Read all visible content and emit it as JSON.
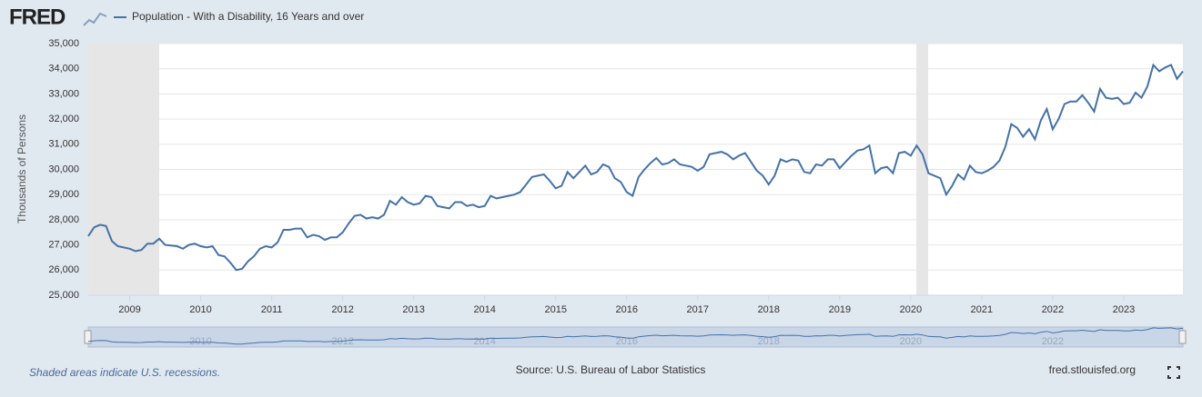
{
  "logo": "FRED",
  "chart_data": {
    "type": "line",
    "y_label": "Thousands of Persons",
    "note": "Shaded areas indicate U.S. recessions.",
    "source": "Source: U.S. Bureau of Labor Statistics",
    "site": "fred.stlouisfed.org",
    "grid": true,
    "ylim": [
      25000,
      35000
    ],
    "yticks": [
      {
        "value": 25000,
        "label": "25,000"
      },
      {
        "value": 26000,
        "label": "26,000"
      },
      {
        "value": 27000,
        "label": "27,000"
      },
      {
        "value": 28000,
        "label": "28,000"
      },
      {
        "value": 29000,
        "label": "29,000"
      },
      {
        "value": 30000,
        "label": "30,000"
      },
      {
        "value": 31000,
        "label": "31,000"
      },
      {
        "value": 32000,
        "label": "32,000"
      },
      {
        "value": 33000,
        "label": "33,000"
      },
      {
        "value": 34000,
        "label": "34,000"
      },
      {
        "value": 35000,
        "label": "35,000"
      }
    ],
    "categories": [
      null,
      null,
      null,
      null,
      null,
      null,
      null,
      "2009",
      null,
      null,
      null,
      null,
      null,
      null,
      null,
      null,
      null,
      null,
      null,
      "2010",
      null,
      null,
      null,
      null,
      null,
      null,
      null,
      null,
      null,
      null,
      null,
      "2011",
      null,
      null,
      null,
      null,
      null,
      null,
      null,
      null,
      null,
      null,
      null,
      "2012",
      null,
      null,
      null,
      null,
      null,
      null,
      null,
      null,
      null,
      null,
      null,
      "2013",
      null,
      null,
      null,
      null,
      null,
      null,
      null,
      null,
      null,
      null,
      null,
      "2014",
      null,
      null,
      null,
      null,
      null,
      null,
      null,
      null,
      null,
      null,
      null,
      "2015",
      null,
      null,
      null,
      null,
      null,
      null,
      null,
      null,
      null,
      null,
      null,
      "2016",
      null,
      null,
      null,
      null,
      null,
      null,
      null,
      null,
      null,
      null,
      null,
      "2017",
      null,
      null,
      null,
      null,
      null,
      null,
      null,
      null,
      null,
      null,
      null,
      "2018",
      null,
      null,
      null,
      null,
      null,
      null,
      null,
      null,
      null,
      null,
      null,
      "2019",
      null,
      null,
      null,
      null,
      null,
      null,
      null,
      null,
      null,
      null,
      null,
      "2020",
      null,
      null,
      null,
      null,
      null,
      null,
      null,
      null,
      null,
      null,
      null,
      "2021",
      null,
      null,
      null,
      null,
      null,
      null,
      null,
      null,
      null,
      null,
      null,
      "2022",
      null,
      null,
      null,
      null,
      null,
      null,
      null,
      null,
      null,
      null,
      null,
      "2023",
      null,
      null,
      null,
      null,
      null,
      null,
      null,
      null,
      null,
      null
    ],
    "series": [
      {
        "name": "Population - With a Disability, 16 Years and over",
        "color": "#4572a7",
        "values": [
          27350,
          27700,
          27800,
          27750,
          27150,
          26950,
          26900,
          26850,
          26750,
          26800,
          27050,
          27050,
          27250,
          27000,
          26980,
          26950,
          26850,
          27000,
          27050,
          26950,
          26900,
          26950,
          26600,
          26550,
          26300,
          26000,
          26050,
          26350,
          26550,
          26850,
          26950,
          26900,
          27100,
          27600,
          27600,
          27650,
          27650,
          27300,
          27400,
          27350,
          27200,
          27300,
          27300,
          27500,
          27850,
          28150,
          28200,
          28050,
          28100,
          28050,
          28200,
          28750,
          28600,
          28900,
          28700,
          28600,
          28650,
          28950,
          28900,
          28550,
          28500,
          28450,
          28700,
          28700,
          28550,
          28600,
          28500,
          28550,
          28950,
          28850,
          28900,
          28950,
          29000,
          29100,
          29400,
          29700,
          29750,
          29800,
          29550,
          29250,
          29350,
          29900,
          29650,
          29900,
          30150,
          29800,
          29900,
          30200,
          30100,
          29650,
          29500,
          29100,
          28950,
          29700,
          30000,
          30250,
          30450,
          30200,
          30250,
          30400,
          30200,
          30150,
          30100,
          29950,
          30100,
          30600,
          30650,
          30700,
          30600,
          30400,
          30550,
          30650,
          30300,
          29950,
          29750,
          29400,
          29750,
          30400,
          30300,
          30400,
          30350,
          29900,
          29850,
          30200,
          30150,
          30400,
          30400,
          30050,
          30300,
          30550,
          30750,
          30800,
          30950,
          29850,
          30050,
          30100,
          29850,
          30650,
          30700,
          30550,
          30950,
          30600,
          29850,
          29750,
          29650,
          29000,
          29350,
          29800,
          29600,
          30150,
          29900,
          29850,
          29950,
          30100,
          30350,
          30900,
          31800,
          31650,
          31300,
          31600,
          31200,
          31950,
          32400,
          31600,
          32000,
          32600,
          32700,
          32700,
          32950,
          32650,
          32300,
          33200,
          32850,
          32800,
          32850,
          32600,
          32650,
          33050,
          32850,
          33300,
          34150,
          33900,
          34050,
          34150,
          33600,
          33900
        ]
      }
    ]
  }
}
